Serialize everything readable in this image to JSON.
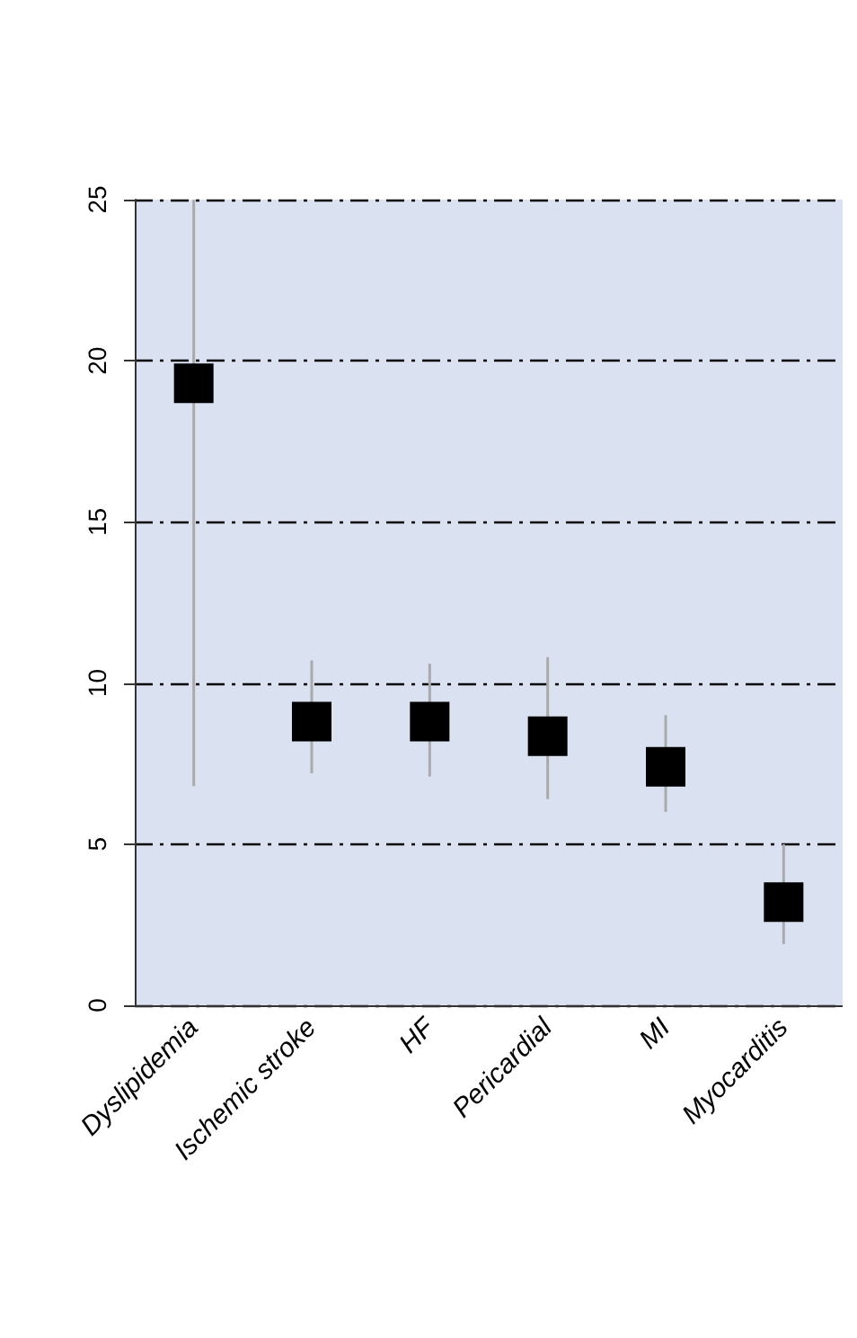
{
  "chart_data": {
    "type": "scatter",
    "categories": [
      "Dyslipidemia",
      "Ischemic stroke",
      "HF",
      "Pericardial",
      "MI",
      "Myocarditis"
    ],
    "values": [
      19.3,
      8.8,
      8.8,
      8.35,
      7.4,
      3.2
    ],
    "errors": [
      [
        6.8,
        25
      ],
      [
        7.2,
        10.7
      ],
      [
        7.1,
        10.6
      ],
      [
        6.4,
        10.8
      ],
      [
        6.0,
        9.0
      ],
      [
        1.9,
        5.0
      ]
    ],
    "color": "#000000",
    "marker": "square",
    "ylim": [
      0,
      25
    ],
    "yticks": [
      0,
      5,
      10,
      15,
      20,
      25
    ],
    "grid": "y"
  }
}
